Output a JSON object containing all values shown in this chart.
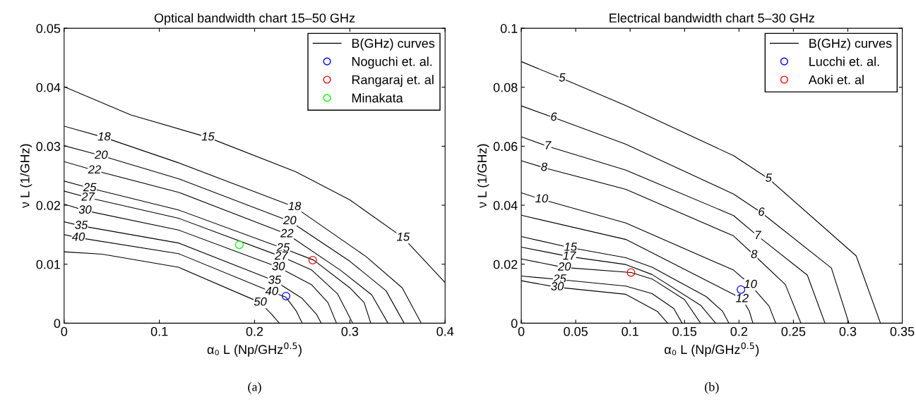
{
  "chart_data": [
    {
      "type": "line",
      "title": "Optical bandwidth chart 15–50 GHz",
      "xlabel": "α₀ L (Np/GHz$^{0.5}$)",
      "ylabel": "ν L (1/GHz)",
      "xlim": [
        0,
        0.4
      ],
      "xticks": [
        0,
        0.1,
        0.2,
        0.3,
        0.4
      ],
      "ylim": [
        0,
        0.05
      ],
      "yticks": [
        0,
        0.01,
        0.02,
        0.03,
        0.04,
        0.05
      ],
      "legend": "top right",
      "series": [
        {
          "name": "B(GHz) curves",
          "color": "#000000",
          "x": [
            0,
            0.07,
            0.151,
            0.243,
            0.3,
            0.356,
            0.4
          ],
          "values": [
            0.0401,
            0.0353,
            0.0315,
            0.0257,
            0.0209,
            0.0145,
            0.0069
          ]
        },
        {
          "color": "#000000",
          "x": [
            0,
            0.042,
            0.12,
            0.242,
            0.317,
            0.355,
            0.375
          ],
          "values": [
            0.0334,
            0.0315,
            0.0272,
            0.0197,
            0.0113,
            0.006,
            0
          ]
        },
        {
          "color": "#000000",
          "x": [
            0,
            0.039,
            0.12,
            0.237,
            0.3,
            0.338,
            0.357
          ],
          "values": [
            0.0301,
            0.0284,
            0.0245,
            0.0173,
            0.0105,
            0.0055,
            0
          ]
        },
        {
          "color": "#000000",
          "x": [
            0,
            0.032,
            0.12,
            0.234,
            0.29,
            0.323,
            0.34
          ],
          "values": [
            0.0274,
            0.0259,
            0.0222,
            0.0151,
            0.009,
            0.0048,
            0
          ]
        },
        {
          "color": "#000000",
          "x": [
            0,
            0.027,
            0.12,
            0.23,
            0.262,
            0.3,
            0.315,
            0.322
          ],
          "values": [
            0.0241,
            0.0229,
            0.0192,
            0.0127,
            0.0107,
            0.006,
            0.0035,
            0
          ]
        },
        {
          "color": "#000000",
          "x": [
            0,
            0.025,
            0.12,
            0.228,
            0.26,
            0.287,
            0.303
          ],
          "values": [
            0.0224,
            0.0213,
            0.0178,
            0.0113,
            0.009,
            0.005,
            0
          ]
        },
        {
          "color": "#000000",
          "x": [
            0,
            0.022,
            0.12,
            0.225,
            0.26,
            0.277,
            0.286
          ],
          "values": [
            0.0202,
            0.0191,
            0.0158,
            0.0095,
            0.0065,
            0.0035,
            0
          ]
        },
        {
          "color": "#000000",
          "x": [
            0,
            0.018,
            0.12,
            0.221,
            0.25,
            0.265,
            0.27
          ],
          "values": [
            0.0172,
            0.0165,
            0.0136,
            0.0072,
            0.0042,
            0.0015,
            0
          ]
        },
        {
          "color": "#000000",
          "x": [
            0,
            0.015,
            0.12,
            0.218,
            0.233,
            0.244,
            0.25
          ],
          "values": [
            0.015,
            0.0145,
            0.0118,
            0.0053,
            0.0044,
            0.002,
            0
          ]
        },
        {
          "color": "#000000",
          "x": [
            0,
            0.04,
            0.12,
            0.206,
            0.218,
            0.226
          ],
          "values": [
            0.0121,
            0.0117,
            0.0095,
            0.0035,
            0.0015,
            0
          ]
        },
        {
          "name": "Noguchi et. al.",
          "type": "scatter",
          "color": "#0000ff",
          "marker": "circle",
          "x": [
            0.233
          ],
          "values": [
            0.0046
          ]
        },
        {
          "name": "Rangaraj et. al",
          "type": "scatter",
          "color": "#ff0000",
          "marker": "circle",
          "x": [
            0.261
          ],
          "values": [
            0.0107
          ]
        },
        {
          "name": "Minakata",
          "type": "scatter",
          "color": "#00ff00",
          "marker": "circle",
          "x": [
            0.184
          ],
          "values": [
            0.0133
          ]
        }
      ],
      "annotations": [
        {
          "text": "15",
          "x": 0.151,
          "y": 0.0315
        },
        {
          "text": "15",
          "x": 0.356,
          "y": 0.0145
        },
        {
          "text": "18",
          "x": 0.042,
          "y": 0.0315
        },
        {
          "text": "18",
          "x": 0.242,
          "y": 0.0197
        },
        {
          "text": "20",
          "x": 0.039,
          "y": 0.0284
        },
        {
          "text": "20",
          "x": 0.237,
          "y": 0.0173
        },
        {
          "text": "22",
          "x": 0.032,
          "y": 0.0259
        },
        {
          "text": "22",
          "x": 0.234,
          "y": 0.0151
        },
        {
          "text": "25",
          "x": 0.027,
          "y": 0.0229
        },
        {
          "text": "25",
          "x": 0.23,
          "y": 0.0127
        },
        {
          "text": "27",
          "x": 0.025,
          "y": 0.0213
        },
        {
          "text": "27",
          "x": 0.228,
          "y": 0.0113
        },
        {
          "text": "30",
          "x": 0.022,
          "y": 0.0191
        },
        {
          "text": "30",
          "x": 0.225,
          "y": 0.0095
        },
        {
          "text": "35",
          "x": 0.018,
          "y": 0.0165
        },
        {
          "text": "35",
          "x": 0.221,
          "y": 0.0072
        },
        {
          "text": "40",
          "x": 0.015,
          "y": 0.0145
        },
        {
          "text": "40",
          "x": 0.218,
          "y": 0.0053
        },
        {
          "text": "50",
          "x": 0.206,
          "y": 0.0035
        },
        "(a)"
      ]
    },
    {
      "type": "line",
      "title": "Electrical bandwidth chart 5–30 GHz",
      "xlabel": "α₀ L (Np/GHz$^{0.5}$)",
      "ylabel": "ν L (1/GHz)",
      "xlim": [
        0,
        0.35
      ],
      "xticks": [
        0,
        0.05,
        0.1,
        0.15,
        0.2,
        0.25,
        0.3,
        0.35
      ],
      "ylim": [
        0,
        0.1
      ],
      "yticks": [
        0,
        0.02,
        0.04,
        0.06,
        0.08,
        0.1
      ],
      "legend": "top right",
      "series": [
        {
          "name": "B(GHz) curves",
          "color": "#000000",
          "x": [
            0,
            0.0375,
            0.096,
            0.195,
            0.2272,
            0.3077,
            0.33
          ],
          "values": [
            0.0887,
            0.083,
            0.0738,
            0.0568,
            0.049,
            0.0228,
            0
          ]
        },
        {
          "color": "#000000",
          "x": [
            0,
            0.0298,
            0.096,
            0.195,
            0.2205,
            0.2849,
            0.301
          ],
          "values": [
            0.0737,
            0.0697,
            0.0607,
            0.0438,
            0.0375,
            0.0187,
            0
          ]
        },
        {
          "color": "#000000",
          "x": [
            0,
            0.0243,
            0.096,
            0.195,
            0.2172,
            0.2628,
            0.279
          ],
          "values": [
            0.0632,
            0.06,
            0.0519,
            0.0365,
            0.0296,
            0.0163,
            0
          ]
        },
        {
          "color": "#000000",
          "x": [
            0,
            0.021,
            0.096,
            0.195,
            0.2139,
            0.2426,
            0.2569
          ],
          "values": [
            0.0551,
            0.0527,
            0.0454,
            0.0296,
            0.0231,
            0.0131,
            0
          ]
        },
        {
          "color": "#000000",
          "x": [
            0,
            0.0187,
            0.096,
            0.195,
            0.2106,
            0.2276,
            0.2338
          ],
          "values": [
            0.0442,
            0.042,
            0.034,
            0.018,
            0.013,
            0.0058,
            0
          ]
        },
        {
          "color": "#000000",
          "x": [
            0,
            0.096,
            0.195,
            0.2029,
            0.2095,
            0.2128
          ],
          "values": [
            0.0366,
            0.0284,
            0.0098,
            0.0082,
            0.0041,
            0
          ]
        },
        {
          "color": "#000000",
          "x": [
            0,
            0.0452,
            0.096,
            0.1202,
            0.17,
            0.185,
            0.1908
          ],
          "values": [
            0.0294,
            0.0256,
            0.0222,
            0.019,
            0.009,
            0.004,
            0
          ]
        },
        {
          "color": "#000000",
          "x": [
            0,
            0.0441,
            0.096,
            0.1202,
            0.165,
            0.1786
          ],
          "values": [
            0.0258,
            0.0226,
            0.0199,
            0.0165,
            0.006,
            0
          ]
        },
        {
          "color": "#000000",
          "x": [
            0,
            0.0397,
            0.1008,
            0.1202,
            0.15,
            0.1647
          ],
          "values": [
            0.0218,
            0.0189,
            0.0172,
            0.015,
            0.008,
            0
          ]
        },
        {
          "color": "#000000",
          "x": [
            0,
            0.0353,
            0.096,
            0.1202,
            0.14,
            0.1478
          ],
          "values": [
            0.016,
            0.0148,
            0.0126,
            0.01,
            0.005,
            0
          ]
        },
        {
          "color": "#000000",
          "x": [
            0,
            0.0331,
            0.096,
            0.125,
            0.1345
          ],
          "values": [
            0.0144,
            0.0122,
            0.0098,
            0.004,
            0
          ]
        },
        {
          "name": "Lucchi et. al.",
          "type": "scatter",
          "color": "#0000ff",
          "marker": "circle",
          "x": [
            0.2018
          ],
          "values": [
            0.0114
          ]
        },
        {
          "name": "Aoki et. al",
          "type": "scatter",
          "color": "#ff0000",
          "marker": "circle",
          "x": [
            0.1008
          ],
          "values": [
            0.0172
          ]
        }
      ],
      "annotations": [
        {
          "text": "5",
          "x": 0.0375,
          "y": 0.083
        },
        {
          "text": "5",
          "x": 0.2272,
          "y": 0.049
        },
        {
          "text": "6",
          "x": 0.0298,
          "y": 0.0697
        },
        {
          "text": "6",
          "x": 0.2205,
          "y": 0.0375
        },
        {
          "text": "7",
          "x": 0.0243,
          "y": 0.06
        },
        {
          "text": "7",
          "x": 0.2172,
          "y": 0.0296
        },
        {
          "text": "8",
          "x": 0.021,
          "y": 0.0527
        },
        {
          "text": "8",
          "x": 0.2139,
          "y": 0.0231
        },
        {
          "text": "10",
          "x": 0.0187,
          "y": 0.042
        },
        {
          "text": "10",
          "x": 0.2106,
          "y": 0.013
        },
        {
          "text": "12",
          "x": 0.2029,
          "y": 0.0082
        },
        {
          "text": "15",
          "x": 0.0452,
          "y": 0.0256
        },
        {
          "text": "17",
          "x": 0.0441,
          "y": 0.0226
        },
        {
          "text": "20",
          "x": 0.0397,
          "y": 0.0189
        },
        {
          "text": "25",
          "x": 0.0353,
          "y": 0.0148
        },
        {
          "text": "30",
          "x": 0.0331,
          "y": 0.0122
        },
        "(b)"
      ]
    }
  ]
}
